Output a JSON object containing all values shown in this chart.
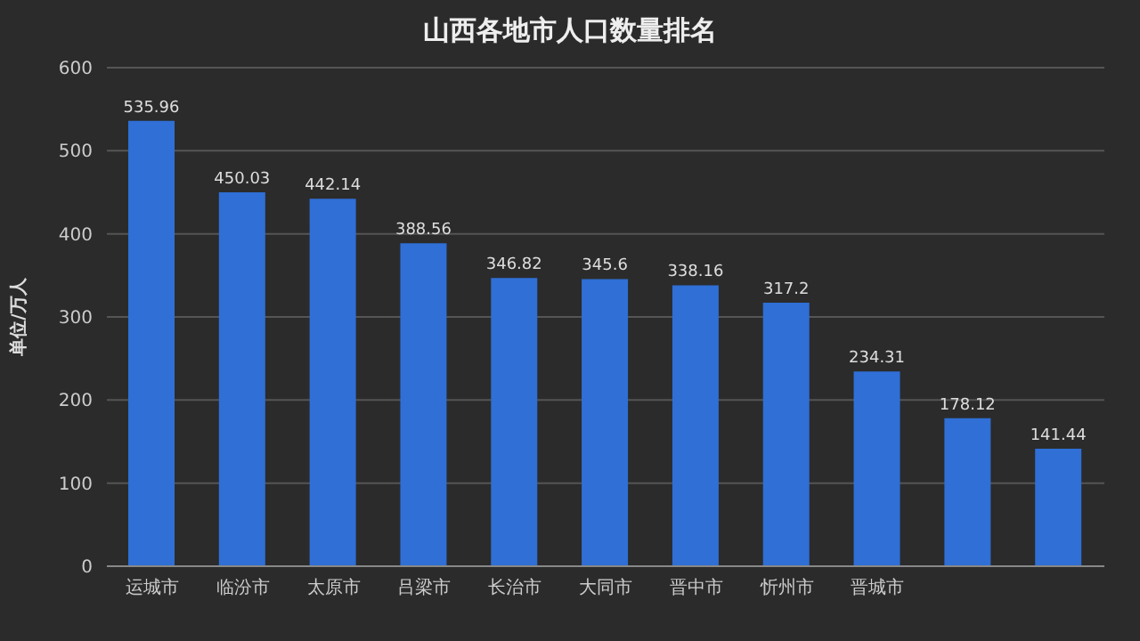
{
  "chart_data": {
    "type": "bar",
    "title": "山西各地市人口数量排名",
    "ylabel": "单位/万人",
    "categories": [
      "运城市",
      "临汾市",
      "太原市",
      "吕梁市",
      "长治市",
      "大同市",
      "晋中市",
      "忻州市",
      "晋城市",
      null,
      null
    ],
    "values": [
      535.96,
      450.03,
      442.14,
      388.56,
      346.82,
      345.6,
      338.16,
      317.2,
      234.31,
      178.12,
      141.44
    ],
    "color": "#2f6fd6",
    "ylim": [
      0,
      600
    ],
    "yticks": [
      0,
      100,
      200,
      300,
      400,
      500,
      600
    ],
    "grid": "y",
    "data_labels": true
  }
}
